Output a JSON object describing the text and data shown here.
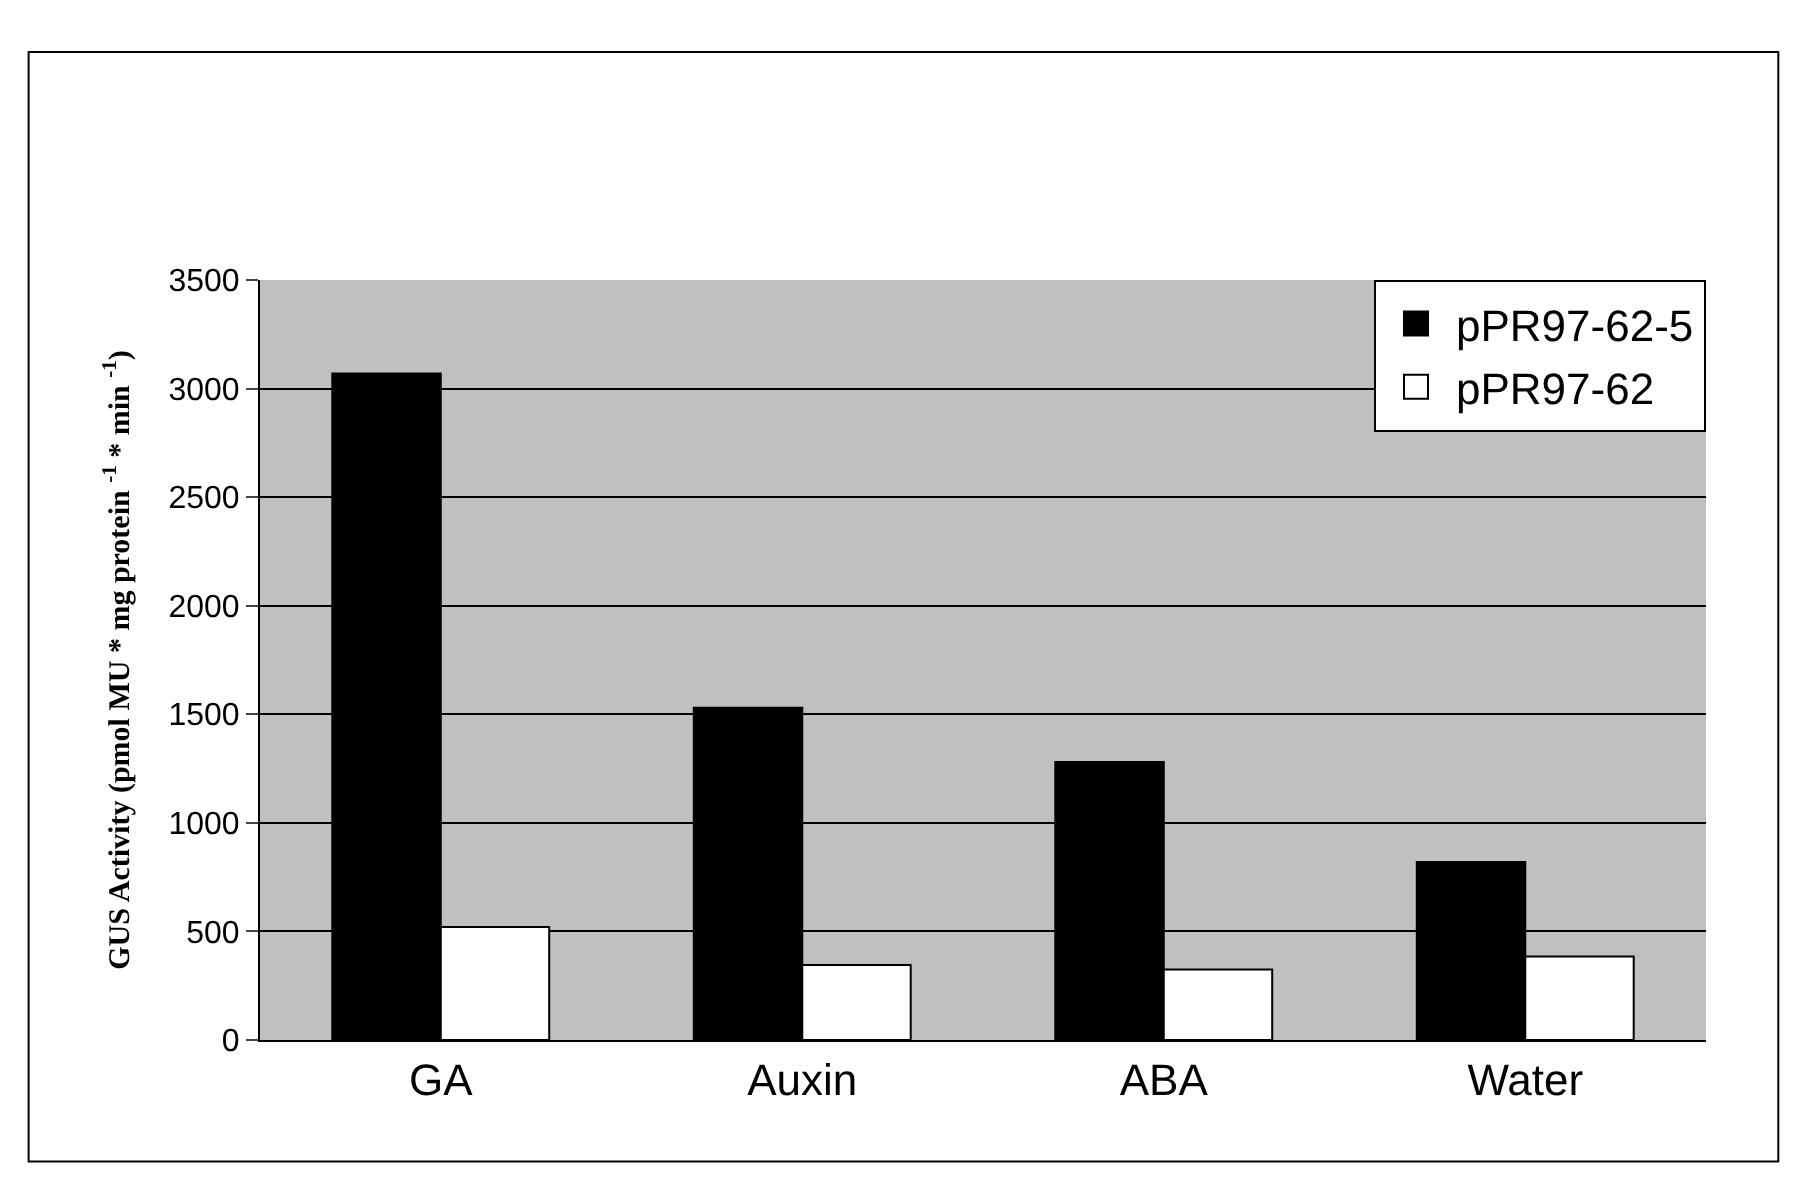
{
  "chart_data": {
    "type": "bar",
    "ylabel": "GUS Activity (pmol MU * mg protein $^{-1}$ * min $^{-1}$)",
    "categories": [
      "GA",
      "Auxin",
      "ABA",
      "Water"
    ],
    "series": [
      {
        "name": "pPR97-62-5",
        "color": "#000000",
        "values": [
          3070,
          1530,
          1280,
          820
        ]
      },
      {
        "name": "pPR97-62",
        "color": "#ffffff",
        "values": [
          520,
          345,
          325,
          385
        ]
      }
    ],
    "ylim": [
      0,
      3500
    ],
    "yticks": [
      0,
      500,
      1000,
      1500,
      2000,
      2500,
      3000,
      3500
    ],
    "grid": "y",
    "legend": "top right"
  }
}
